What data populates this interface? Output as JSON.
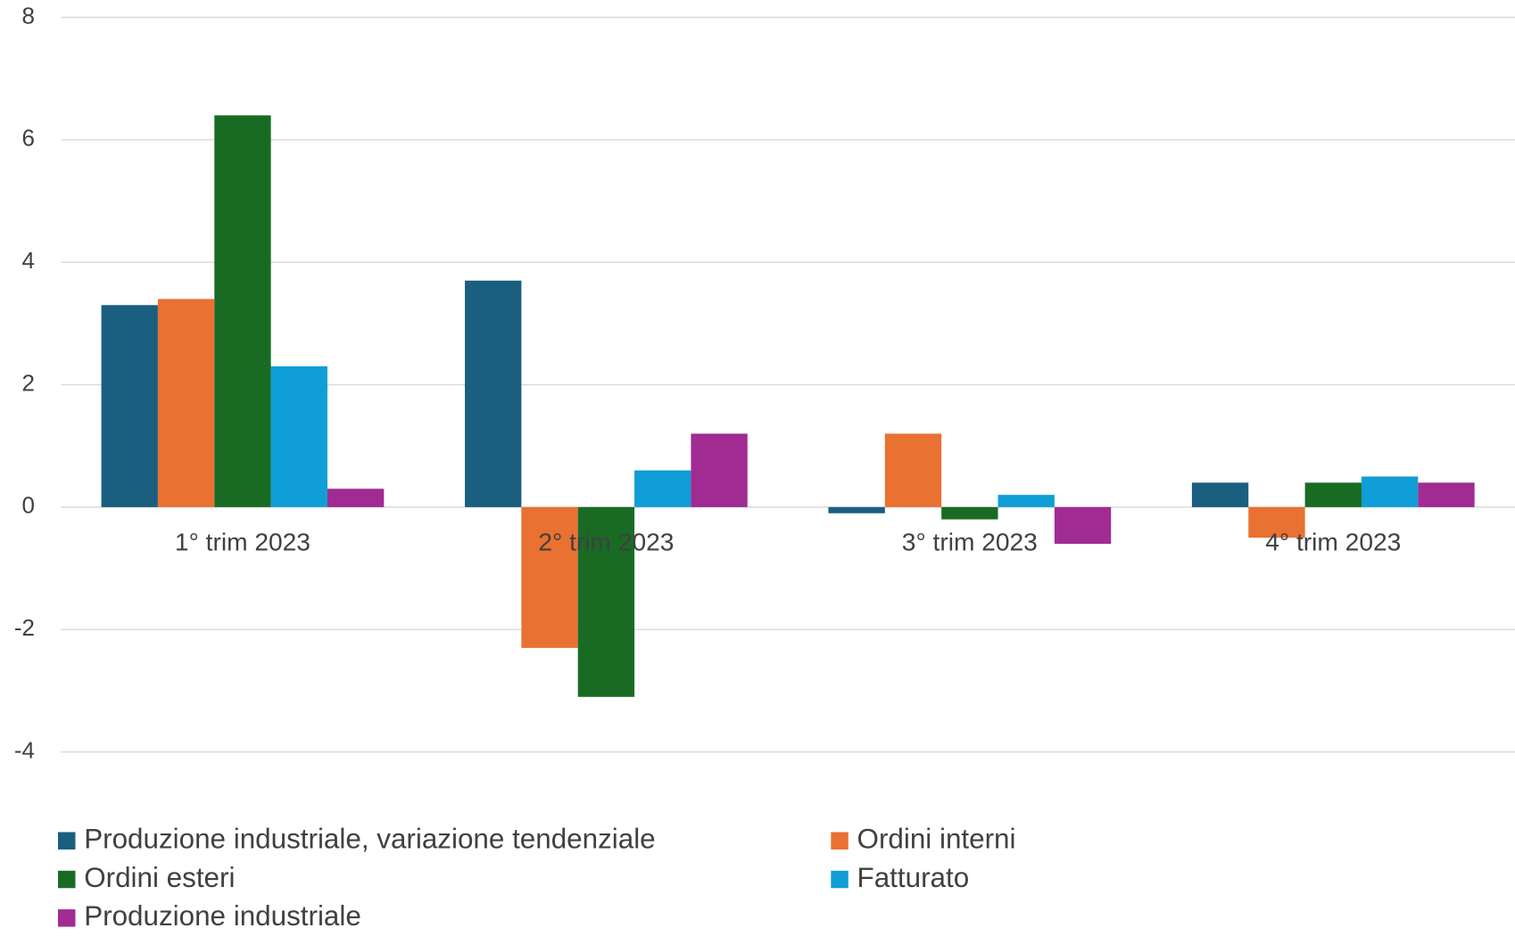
{
  "chart_data": {
    "type": "bar",
    "categories": [
      "1° trim 2023",
      "2° trim 2023",
      "3° trim 2023",
      "4° trim 2023"
    ],
    "series": [
      {
        "name": "Produzione industriale, variazione tendenziale",
        "color": "#1a5e80",
        "values": [
          3.3,
          3.7,
          -0.1,
          0.4
        ]
      },
      {
        "name": "Ordini interni",
        "color": "#e97132",
        "values": [
          3.4,
          -2.3,
          1.2,
          -0.5
        ]
      },
      {
        "name": "Ordini esteri",
        "color": "#196b24",
        "values": [
          6.4,
          -3.1,
          -0.2,
          0.4
        ]
      },
      {
        "name": "Fatturato",
        "color": "#0f9ed5",
        "values": [
          2.3,
          0.6,
          0.2,
          0.5
        ]
      },
      {
        "name": "Produzione industriale",
        "color": "#a02b93",
        "values": [
          0.3,
          1.2,
          -0.6,
          0.4
        ]
      }
    ],
    "ylim": [
      -4,
      8
    ],
    "yticks": [
      -4,
      -2,
      0,
      2,
      4,
      6,
      8
    ],
    "grid": true,
    "legend": "bottom"
  }
}
